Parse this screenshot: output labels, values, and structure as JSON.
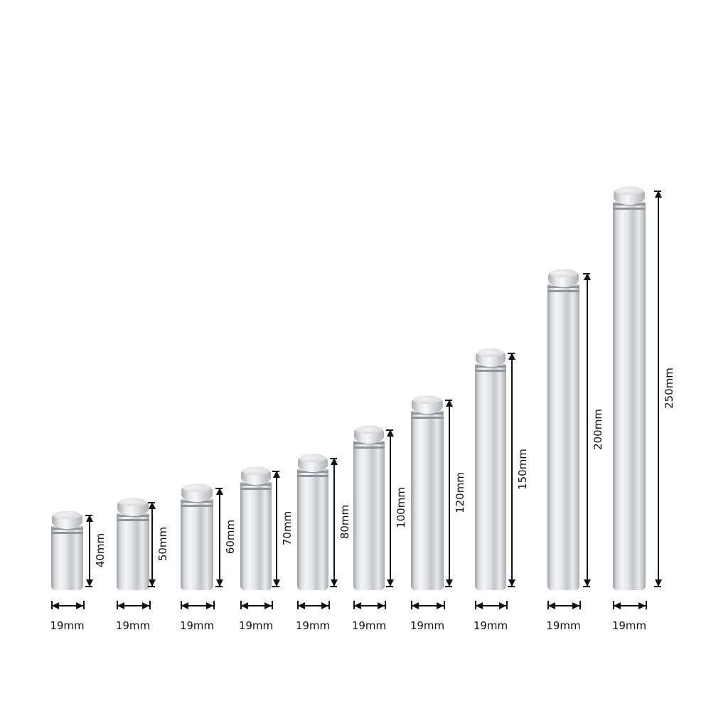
{
  "product": "glass standoff screws",
  "diameter_label": "19mm",
  "standoffs": [
    {
      "length_label": "40mm",
      "diameter_label": "19mm"
    },
    {
      "length_label": "50mm",
      "diameter_label": "19mm"
    },
    {
      "length_label": "60mm",
      "diameter_label": "19mm"
    },
    {
      "length_label": "70mm",
      "diameter_label": "19mm"
    },
    {
      "length_label": "80mm",
      "diameter_label": "19mm"
    },
    {
      "length_label": "100mm",
      "diameter_label": "19mm"
    },
    {
      "length_label": "120mm",
      "diameter_label": "19mm"
    },
    {
      "length_label": "150mm",
      "diameter_label": "19mm"
    },
    {
      "length_label": "200mm",
      "diameter_label": "19mm"
    },
    {
      "length_label": "250mm",
      "diameter_label": "19mm"
    }
  ],
  "colors": {
    "metal": "#d8dadd",
    "dimension_line": "#111111",
    "background": "#ffffff"
  }
}
